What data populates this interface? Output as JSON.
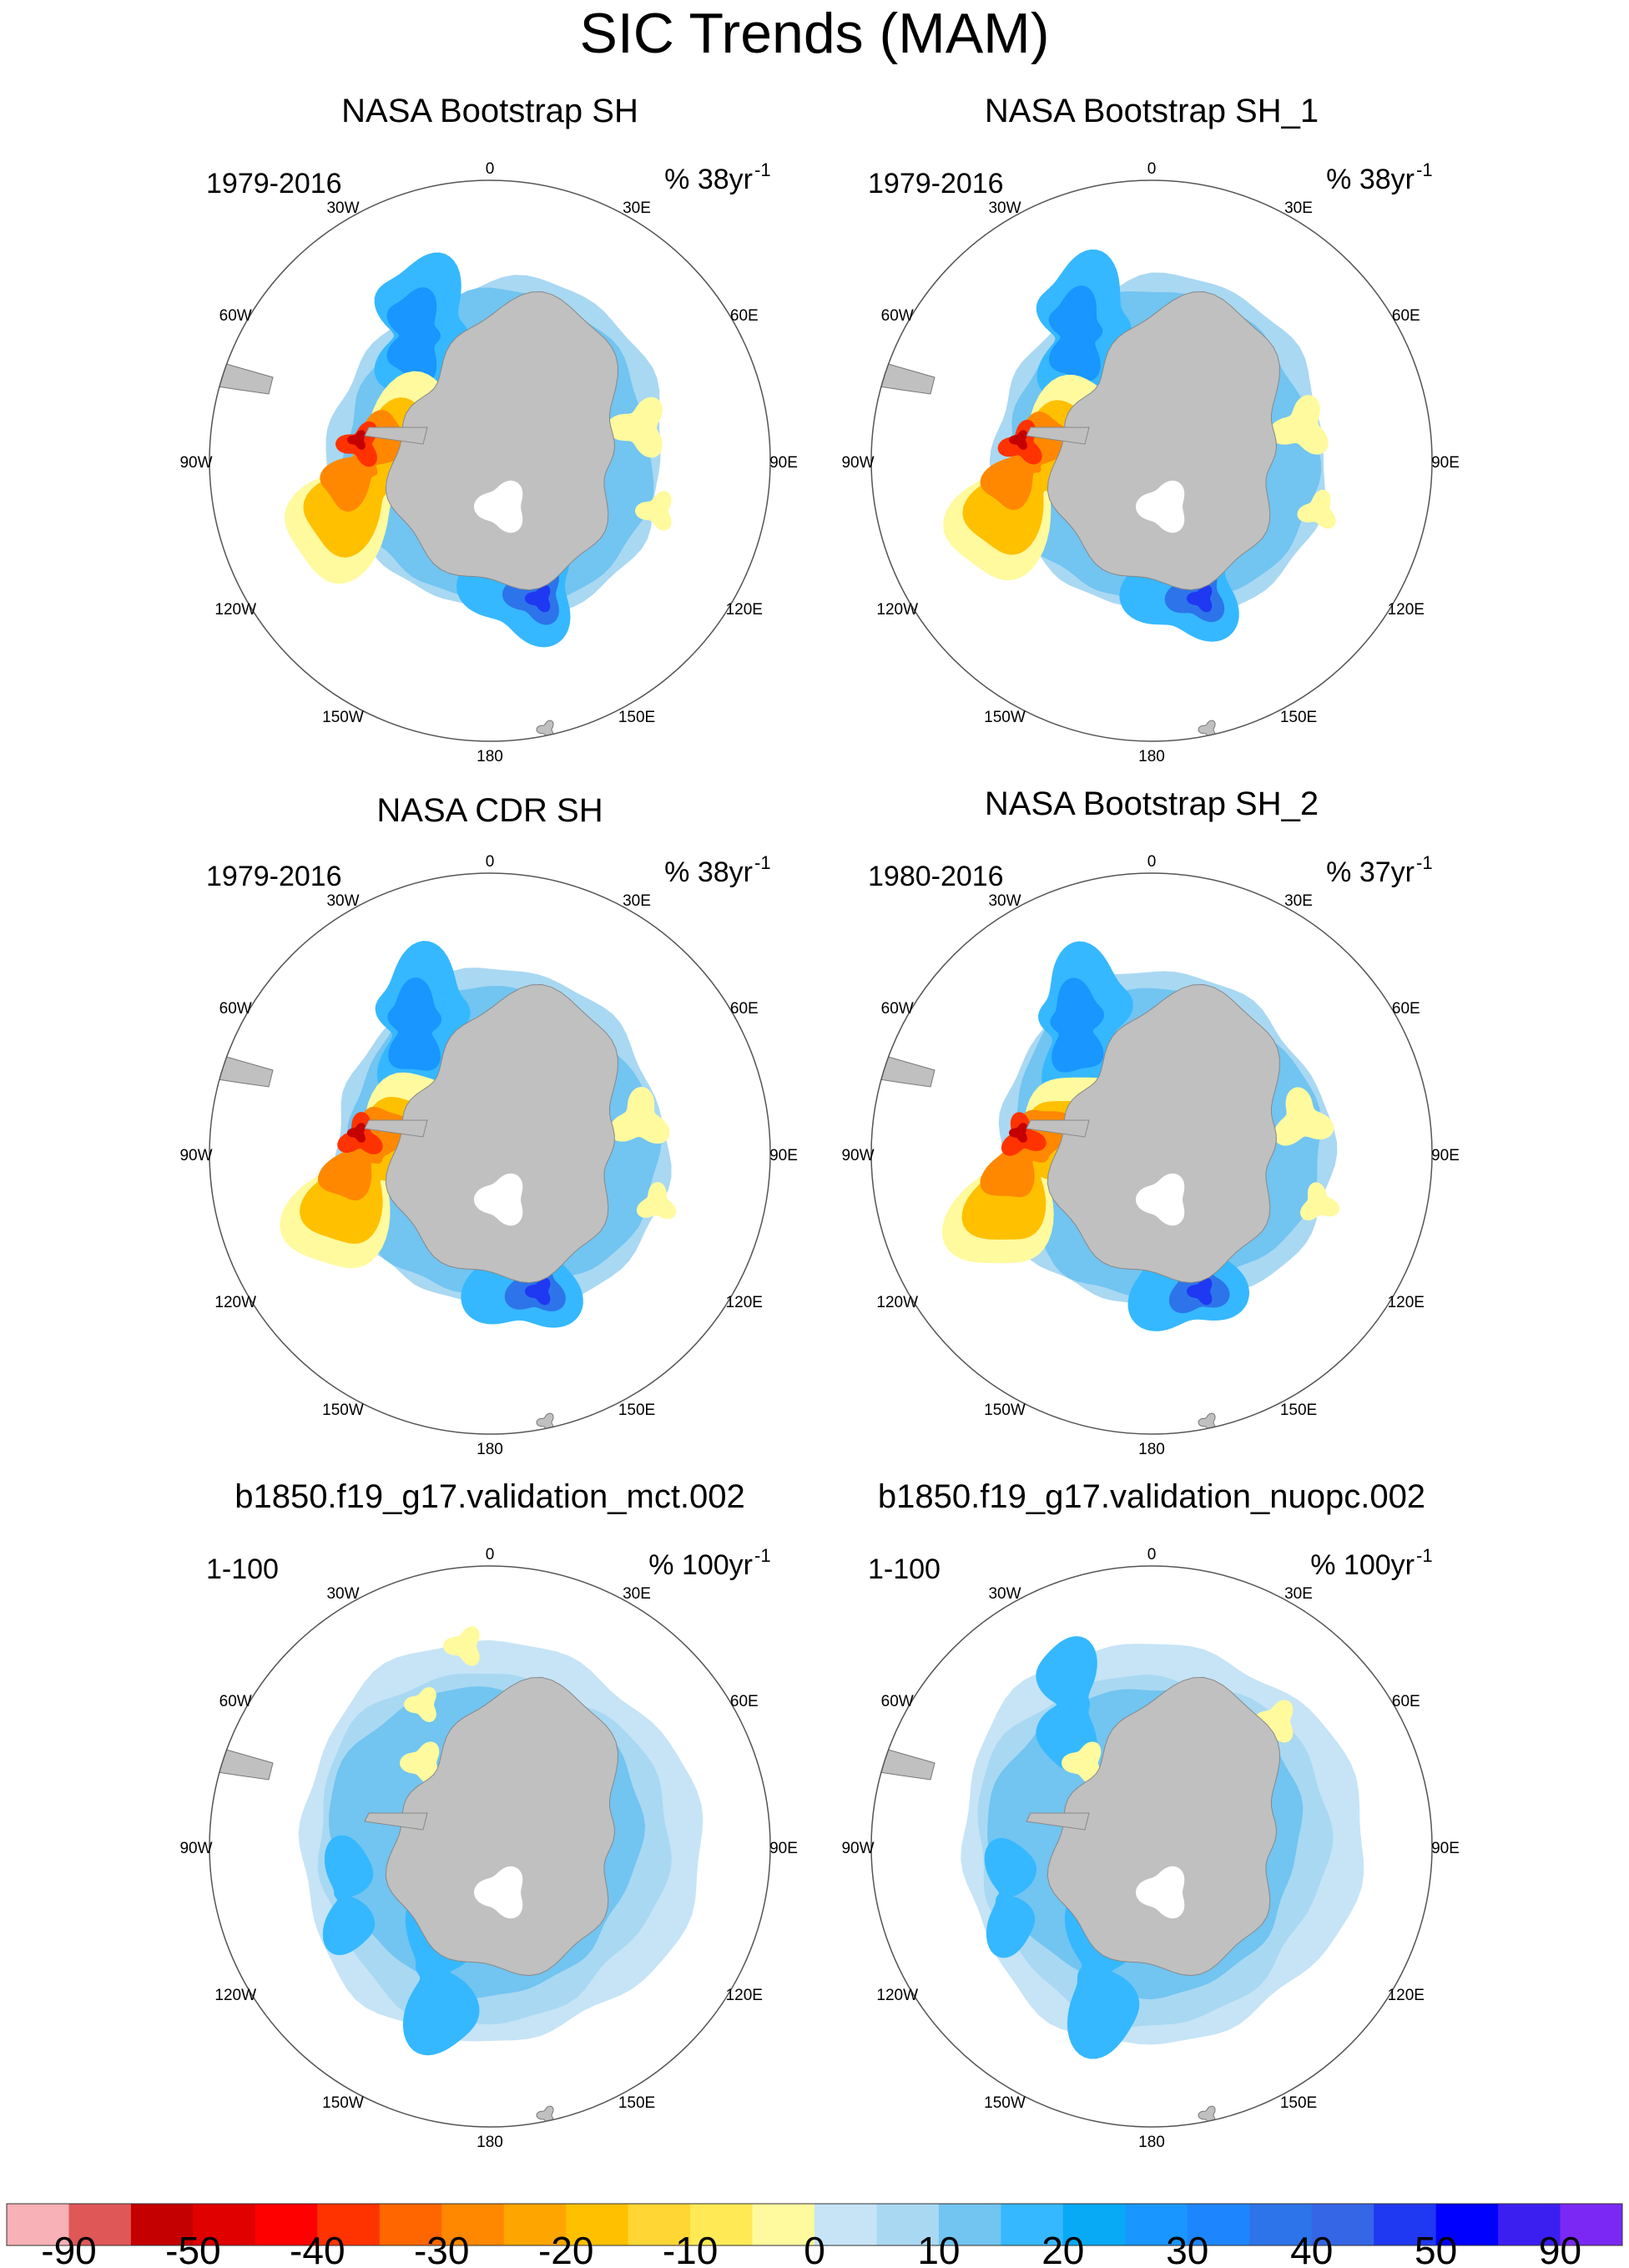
{
  "title": "SIC Trends (MAM)",
  "chart_data": {
    "type": "contour-map",
    "projection": "south polar stereographic",
    "title": "SIC Trends (MAM)",
    "longitude_labels": [
      "0",
      "30E",
      "60E",
      "90E",
      "120E",
      "150E",
      "180",
      "150W",
      "120W",
      "90W",
      "60W",
      "30W"
    ],
    "colorbar": {
      "tick_labels": [
        "-90",
        "-50",
        "-40",
        "-30",
        "-20",
        "-10",
        "0",
        "10",
        "20",
        "30",
        "40",
        "50",
        "90"
      ],
      "colors": [
        "#f8b1b6",
        "#e05757",
        "#c50000",
        "#e10000",
        "#ff0000",
        "#ff3300",
        "#ff6600",
        "#ff8800",
        "#ffa500",
        "#ffc000",
        "#ffd633",
        "#ffea55",
        "#fffa9e",
        "#c6e4f6",
        "#a9d8f2",
        "#72c4f1",
        "#35b8ff",
        "#08a9f5",
        "#1996ff",
        "#1d86ff",
        "#2d74ea",
        "#3466e6",
        "#1f38f2",
        "#0000ff",
        "#3b1ff0",
        "#7b28f5"
      ]
    },
    "panels": [
      {
        "title": "NASA Bootstrap SH",
        "period": "1979-2016",
        "units_prefix": "% 38yr",
        "units_sup": "-1",
        "pattern": "obs"
      },
      {
        "title": "NASA Bootstrap SH_1",
        "period": "1979-2016",
        "units_prefix": "% 38yr",
        "units_sup": "-1",
        "pattern": "obs"
      },
      {
        "title": "NASA CDR SH",
        "period": "1979-2016",
        "units_prefix": "% 38yr",
        "units_sup": "-1",
        "pattern": "obs"
      },
      {
        "title": "NASA Bootstrap SH_2",
        "period": "1980-2016",
        "units_prefix": "% 37yr",
        "units_sup": "-1",
        "pattern": "obs"
      },
      {
        "title": "b1850.f19_g17.validation_mct.002",
        "period": "1-100",
        "units_prefix": "% 100yr",
        "units_sup": "-1",
        "pattern": "model_mct"
      },
      {
        "title": "b1850.f19_g17.validation_nuopc.002",
        "period": "1-100",
        "units_prefix": "% 100yr",
        "units_sup": "-1",
        "pattern": "model_nuopc"
      }
    ]
  }
}
